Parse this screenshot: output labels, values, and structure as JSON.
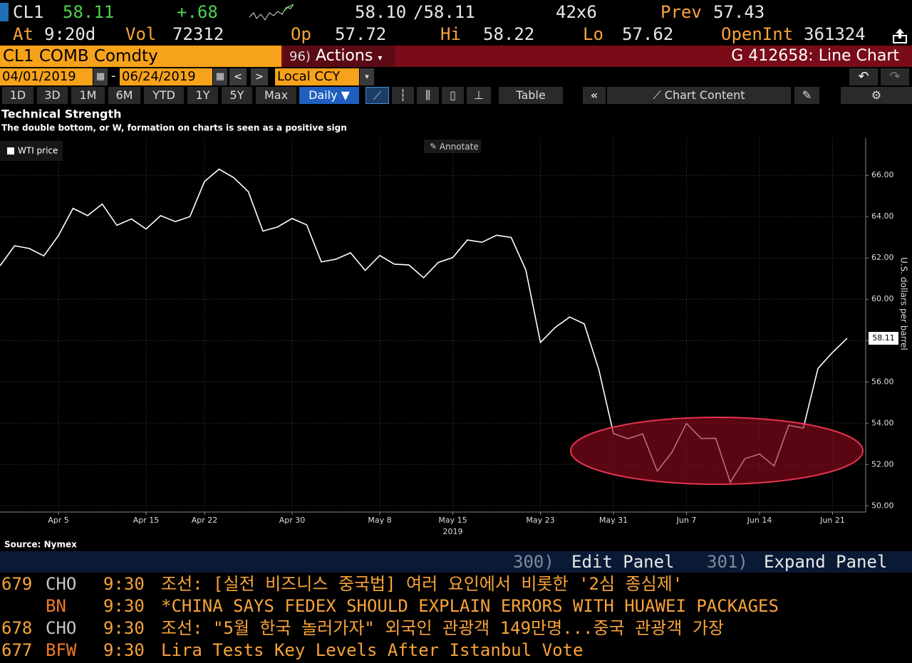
{
  "header": {
    "ticker": "CL1",
    "last": "58.11",
    "change": "+.68",
    "bid": "58.10",
    "ask": "/58.11",
    "size": "42x6",
    "prev_label": "Prev",
    "prev": "57.43",
    "time_label": "At",
    "time": "9:20d",
    "vol_label": "Vol",
    "vol": "72312",
    "open_label": "Op",
    "open": "57.72",
    "high_label": "Hi",
    "high": "58.22",
    "low_label": "Lo",
    "low": "57.62",
    "oi_label": "OpenInt",
    "oi": "361324",
    "security": "CL1 COMB Comdty",
    "actions_code": "96)",
    "actions": "Actions",
    "function": "G 412658: Line Chart",
    "start_date": "04/01/2019",
    "end_date": "06/24/2019",
    "date_sep": "-",
    "currency": "Local CCY"
  },
  "toolbar": {
    "periods": [
      "1D",
      "3D",
      "1M",
      "6M",
      "YTD",
      "1Y",
      "5Y",
      "Max"
    ],
    "frequency": "Daily",
    "table": "Table",
    "chart_content": "Chart Content"
  },
  "annotate_button": "Annotate",
  "chart_data": {
    "type": "line",
    "title": "Technical Strength",
    "subtitle": "The double bottom, or W, formation on charts is seen as a positive sign",
    "source": "Source: Nymex",
    "y_label": "U.S. dollars per barrel",
    "x_axis_year": "2019",
    "categories": [
      null,
      null,
      null,
      null,
      "Apr 5",
      null,
      null,
      null,
      null,
      null,
      "Apr 15",
      null,
      null,
      null,
      "Apr 22",
      null,
      null,
      null,
      null,
      null,
      "Apr 30",
      null,
      null,
      null,
      null,
      null,
      "May 8",
      null,
      null,
      null,
      null,
      "May 15",
      null,
      null,
      null,
      null,
      null,
      "May 23",
      null,
      null,
      null,
      null,
      "May 31",
      null,
      null,
      null,
      null,
      "Jun 7",
      null,
      null,
      null,
      null,
      "Jun 14",
      null,
      null,
      null,
      null,
      "Jun 21",
      null
    ],
    "series": [
      {
        "name": "WTI price",
        "color": "#ffffff",
        "values": [
          61.62,
          62.59,
          62.46,
          62.1,
          63.08,
          64.4,
          64.05,
          64.61,
          63.58,
          63.89,
          63.4,
          64.05,
          63.76,
          64.0,
          65.7,
          66.3,
          65.89,
          65.21,
          63.3,
          63.5,
          63.91,
          63.6,
          61.81,
          61.94,
          62.25,
          61.4,
          62.12,
          61.7,
          61.66,
          61.04,
          61.78,
          62.02,
          62.87,
          62.76,
          63.1,
          62.99,
          61.42,
          57.91,
          58.63,
          59.14,
          58.81,
          56.59,
          53.5,
          53.25,
          53.48,
          51.68,
          52.59,
          53.99,
          53.26,
          53.27,
          51.14,
          52.28,
          52.51,
          51.93,
          53.9,
          53.76,
          56.65,
          57.43,
          58.11
        ]
      }
    ],
    "ylim": [
      49.7,
      67.8
    ],
    "yticks": [
      {
        "value": 50,
        "label": "50.00"
      },
      {
        "value": 52,
        "label": "52.00"
      },
      {
        "value": 54,
        "label": "54.00"
      },
      {
        "value": 56,
        "label": "56.00"
      },
      {
        "value": 58,
        "label": "58.00"
      },
      {
        "value": 60,
        "label": "60.00"
      },
      {
        "value": 62,
        "label": "62.00"
      },
      {
        "value": 64,
        "label": "64.00"
      },
      {
        "value": 66,
        "label": "66.00"
      }
    ],
    "grid": true
  },
  "panel": {
    "edit_code": "300)",
    "edit": "Edit Panel",
    "expand_code": "301)",
    "expand": "Expand Panel"
  },
  "news": [
    {
      "id": "679",
      "source": "CHO",
      "time": "9:30",
      "headline": "조선: [실전 비즈니스 중국법] 여러 요인에서 비롯한 '2심 종심제'"
    },
    {
      "source": "BN",
      "time": "9:30",
      "headline": "*CHINA SAYS FEDEX SHOULD EXPLAIN ERRORS WITH HUAWEI PACKAGES"
    },
    {
      "id": "678",
      "source": "CHO",
      "time": "9:30",
      "headline": "조선: \"5월 한국 놀러가자\" 외국인 관광객 149만명...중국 관광객 가장"
    },
    {
      "id": "677",
      "source": "BFW",
      "time": "9:30",
      "headline": "Lira Tests Key Levels After Istanbul Vote"
    }
  ]
}
